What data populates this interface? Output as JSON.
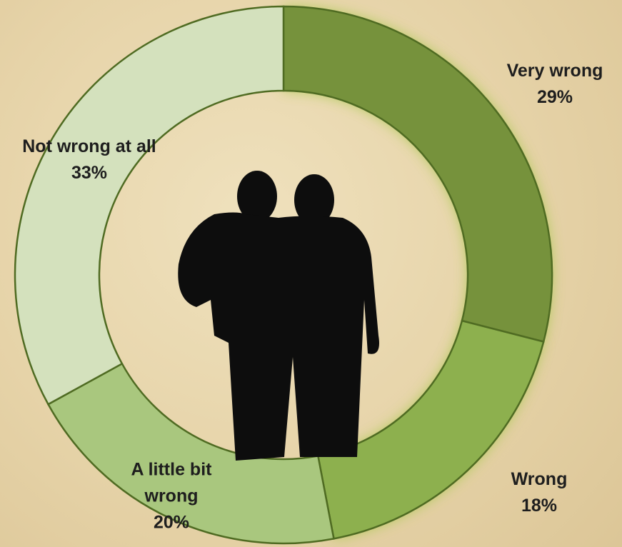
{
  "chart_data": {
    "type": "donut",
    "categories": [
      "Very wrong",
      "Wrong",
      "A little bit wrong",
      "Not wrong at all"
    ],
    "values": [
      29,
      18,
      20,
      33
    ],
    "value_labels": [
      "29%",
      "18%",
      "20%",
      "33%"
    ],
    "colors": [
      "#76923c",
      "#8db04e",
      "#a9c77e",
      "#d4e1bd"
    ]
  }
}
